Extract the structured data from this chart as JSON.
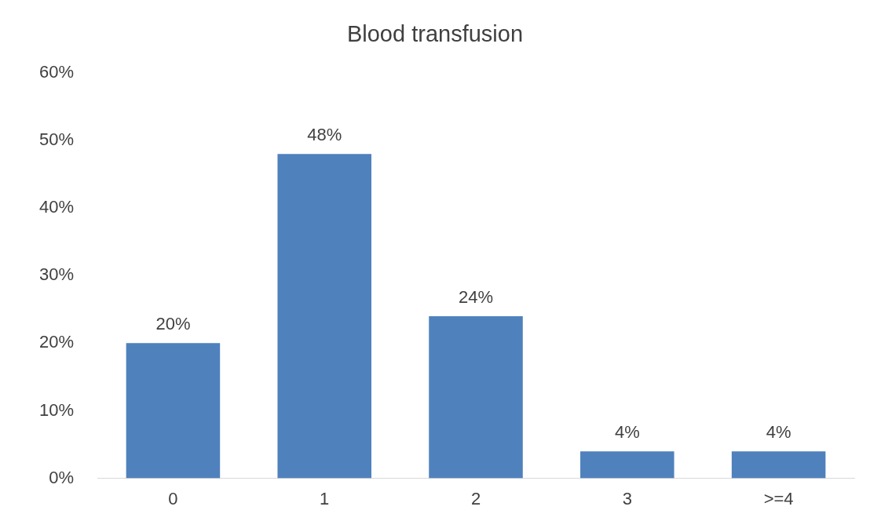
{
  "chart_data": {
    "type": "bar",
    "title": "Blood transfusion",
    "categories": [
      "0",
      "1",
      "2",
      "3",
      ">=4"
    ],
    "values": [
      20,
      48,
      24,
      4,
      4
    ],
    "value_labels": [
      "20%",
      "48%",
      "24%",
      "4%",
      "4%"
    ],
    "color": "#4f81bd",
    "ylim": [
      0,
      60
    ],
    "yticks": [
      {
        "value": 0,
        "label": "0%"
      },
      {
        "value": 10,
        "label": "10%"
      },
      {
        "value": 20,
        "label": "20%"
      },
      {
        "value": 30,
        "label": "30%"
      },
      {
        "value": 40,
        "label": "40%"
      },
      {
        "value": 50,
        "label": "50%"
      },
      {
        "value": 60,
        "label": "60%"
      }
    ],
    "grid": false,
    "legend": false
  }
}
